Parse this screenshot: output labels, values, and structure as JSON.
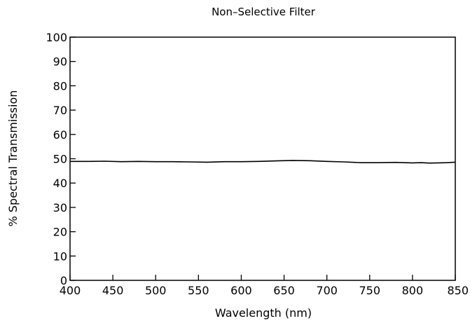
{
  "chart_data": {
    "type": "line",
    "title": "Non–Selective Filter",
    "xlabel": "Wavelength (nm)",
    "ylabel": "% Spectral Transmission",
    "xlim": [
      400,
      850
    ],
    "ylim": [
      0,
      100
    ],
    "x_ticks": [
      "400",
      "450",
      "500",
      "550",
      "600",
      "650",
      "700",
      "750",
      "800",
      "850"
    ],
    "y_ticks": [
      "0",
      "10",
      "20",
      "30",
      "40",
      "50",
      "60",
      "70",
      "80",
      "90",
      "100"
    ],
    "grid": false,
    "series": [
      {
        "color": "#000000",
        "x": [
          400,
          420,
          440,
          460,
          480,
          500,
          520,
          540,
          560,
          580,
          600,
          620,
          640,
          660,
          680,
          700,
          720,
          740,
          760,
          780,
          800,
          810,
          820,
          840,
          850
        ],
        "y": [
          48.9,
          48.9,
          49.0,
          48.8,
          48.9,
          48.8,
          48.8,
          48.7,
          48.6,
          48.8,
          48.8,
          48.9,
          49.1,
          49.3,
          49.2,
          48.9,
          48.7,
          48.4,
          48.4,
          48.5,
          48.3,
          48.4,
          48.2,
          48.4,
          48.6
        ]
      }
    ]
  }
}
